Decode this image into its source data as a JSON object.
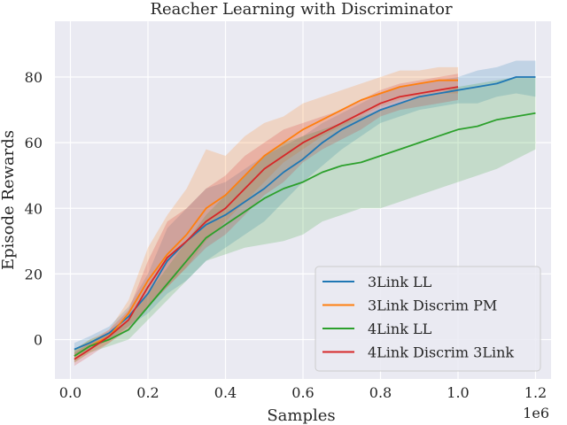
{
  "chart_data": {
    "type": "line",
    "title": "Reacher Learning with Discriminator",
    "xlabel": "Samples",
    "ylabel": "Episode Rewards",
    "x_offset_label": "1e6",
    "xlim": [
      -0.04,
      1.24
    ],
    "ylim": [
      -12,
      97
    ],
    "xticks": [
      0.0,
      0.2,
      0.4,
      0.6,
      0.8,
      1.0,
      1.2
    ],
    "xtick_labels": [
      "0.0",
      "0.2",
      "0.4",
      "0.6",
      "0.8",
      "1.0",
      "1.2"
    ],
    "yticks": [
      0,
      20,
      40,
      60,
      80
    ],
    "ytick_labels": [
      "0",
      "20",
      "40",
      "60",
      "80"
    ],
    "grid": true,
    "legend_position": "lower-right",
    "series": [
      {
        "name": "3Link LL",
        "color": "#1f77b4",
        "x": [
          0.01,
          0.05,
          0.1,
          0.15,
          0.2,
          0.25,
          0.3,
          0.35,
          0.4,
          0.45,
          0.5,
          0.55,
          0.6,
          0.65,
          0.7,
          0.75,
          0.8,
          0.85,
          0.9,
          0.95,
          1.0,
          1.05,
          1.1,
          1.15,
          1.2
        ],
        "y": [
          -3,
          -1,
          2,
          7,
          14,
          24,
          30,
          35,
          38,
          42,
          46,
          51,
          55,
          60,
          64,
          67,
          70,
          72,
          74,
          75,
          76,
          77,
          78,
          80,
          80
        ],
        "lower": [
          -5,
          -3,
          0,
          4,
          8,
          14,
          18,
          24,
          28,
          32,
          36,
          42,
          48,
          53,
          58,
          62,
          66,
          68,
          70,
          71,
          72,
          72,
          74,
          75,
          74
        ],
        "upper": [
          -1,
          1,
          4,
          10,
          20,
          34,
          40,
          46,
          48,
          52,
          56,
          59,
          62,
          66,
          69,
          72,
          75,
          77,
          78,
          79,
          80,
          82,
          83,
          85,
          85
        ]
      },
      {
        "name": "3Link Discrim PM",
        "color": "#ff7f0e",
        "x": [
          0.01,
          0.05,
          0.1,
          0.15,
          0.2,
          0.25,
          0.3,
          0.35,
          0.4,
          0.45,
          0.5,
          0.55,
          0.6,
          0.65,
          0.7,
          0.75,
          0.8,
          0.85,
          0.9,
          0.95,
          1.0
        ],
        "y": [
          -5,
          -2,
          1,
          8,
          18,
          26,
          32,
          40,
          44,
          50,
          56,
          60,
          64,
          67,
          70,
          73,
          75,
          77,
          78,
          79,
          79
        ],
        "lower": [
          -7,
          -4,
          -1,
          4,
          10,
          16,
          22,
          30,
          36,
          42,
          48,
          54,
          58,
          62,
          65,
          68,
          71,
          73,
          74,
          75,
          75
        ],
        "upper": [
          -3,
          0,
          3,
          12,
          28,
          38,
          46,
          58,
          56,
          62,
          66,
          68,
          72,
          74,
          76,
          78,
          80,
          82,
          82,
          83,
          83
        ]
      },
      {
        "name": "4Link LL",
        "color": "#2ca02c",
        "x": [
          0.01,
          0.05,
          0.1,
          0.15,
          0.2,
          0.25,
          0.3,
          0.35,
          0.4,
          0.45,
          0.5,
          0.55,
          0.6,
          0.65,
          0.7,
          0.75,
          0.8,
          0.85,
          0.9,
          0.95,
          1.0,
          1.05,
          1.1,
          1.15,
          1.2
        ],
        "y": [
          -5,
          -2,
          0,
          3,
          10,
          17,
          24,
          31,
          35,
          39,
          43,
          46,
          48,
          51,
          53,
          54,
          56,
          58,
          60,
          62,
          64,
          65,
          67,
          68,
          69
        ],
        "lower": [
          -7,
          -4,
          -2,
          0,
          6,
          12,
          18,
          24,
          26,
          28,
          29,
          30,
          32,
          36,
          38,
          40,
          40,
          42,
          44,
          46,
          48,
          50,
          52,
          55,
          58
        ],
        "upper": [
          -3,
          0,
          2,
          6,
          14,
          22,
          30,
          38,
          44,
          50,
          56,
          60,
          62,
          64,
          66,
          68,
          70,
          72,
          74,
          75,
          77,
          78,
          79,
          80,
          80
        ]
      },
      {
        "name": "4Link Discrim 3Link",
        "color": "#d62728",
        "x": [
          0.01,
          0.05,
          0.1,
          0.15,
          0.2,
          0.25,
          0.3,
          0.35,
          0.4,
          0.45,
          0.5,
          0.55,
          0.6,
          0.65,
          0.7,
          0.75,
          0.8,
          0.85,
          0.9,
          0.95,
          1.0
        ],
        "y": [
          -6,
          -3,
          1,
          6,
          16,
          25,
          30,
          36,
          40,
          46,
          52,
          56,
          60,
          63,
          66,
          69,
          72,
          74,
          75,
          76,
          77
        ],
        "lower": [
          -8,
          -5,
          -1,
          3,
          10,
          16,
          22,
          28,
          32,
          38,
          44,
          48,
          54,
          58,
          61,
          64,
          68,
          70,
          71,
          72,
          73
        ],
        "upper": [
          -4,
          -1,
          3,
          9,
          24,
          36,
          40,
          46,
          50,
          56,
          60,
          64,
          66,
          68,
          70,
          73,
          76,
          78,
          79,
          80,
          81
        ]
      }
    ]
  }
}
